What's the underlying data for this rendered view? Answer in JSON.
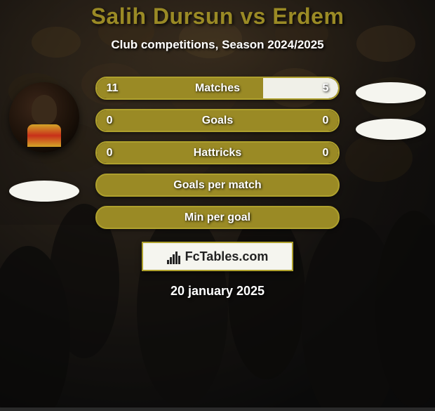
{
  "title": "Salih Dursun vs Erdem",
  "title_color": "#9a8a25",
  "subtitle": "Club competitions, Season 2024/2025",
  "background": {
    "overlay_color": "rgba(18,18,18,0.62)",
    "base_gradient": "radial-gradient(circle at 30% 30%, rgba(120,90,50,0.5) 0%, rgba(25,20,15,0.7) 50%, rgba(10,10,10,0.9) 100%)"
  },
  "accent_color": "#9a8a25",
  "border_color": "#aea02d",
  "white": "#f5f5ef",
  "stats": [
    {
      "type": "split",
      "left_value": "11",
      "label": "Matches",
      "right_value": "5",
      "left_pct": 68.75,
      "right_pct": 31.25,
      "left_color": "#9a8a25",
      "right_color": "#f0f0e8"
    },
    {
      "type": "split",
      "left_value": "0",
      "label": "Goals",
      "right_value": "0",
      "left_pct": 50,
      "right_pct": 50,
      "left_color": "#9a8a25",
      "right_color": "#9a8a25"
    },
    {
      "type": "split",
      "left_value": "0",
      "label": "Hattricks",
      "right_value": "0",
      "left_pct": 50,
      "right_pct": 50,
      "left_color": "#9a8a25",
      "right_color": "#9a8a25"
    },
    {
      "type": "full",
      "label": "Goals per match"
    },
    {
      "type": "full",
      "label": "Min per goal"
    }
  ],
  "players": {
    "left": {
      "name": "Salih Dursun",
      "has_photo": true
    },
    "right": {
      "name": "Erdem",
      "has_photo": false
    }
  },
  "footer": {
    "brand": "FcTables.com",
    "bg": "#f5f5ef",
    "border": "#aea02d",
    "icon_bars": [
      6,
      10,
      14,
      18,
      12
    ]
  },
  "date": "20 january 2025",
  "typography": {
    "title_fontsize": 32,
    "subtitle_fontsize": 17,
    "stat_fontsize": 16,
    "footer_fontsize": 18,
    "date_fontsize": 18
  }
}
